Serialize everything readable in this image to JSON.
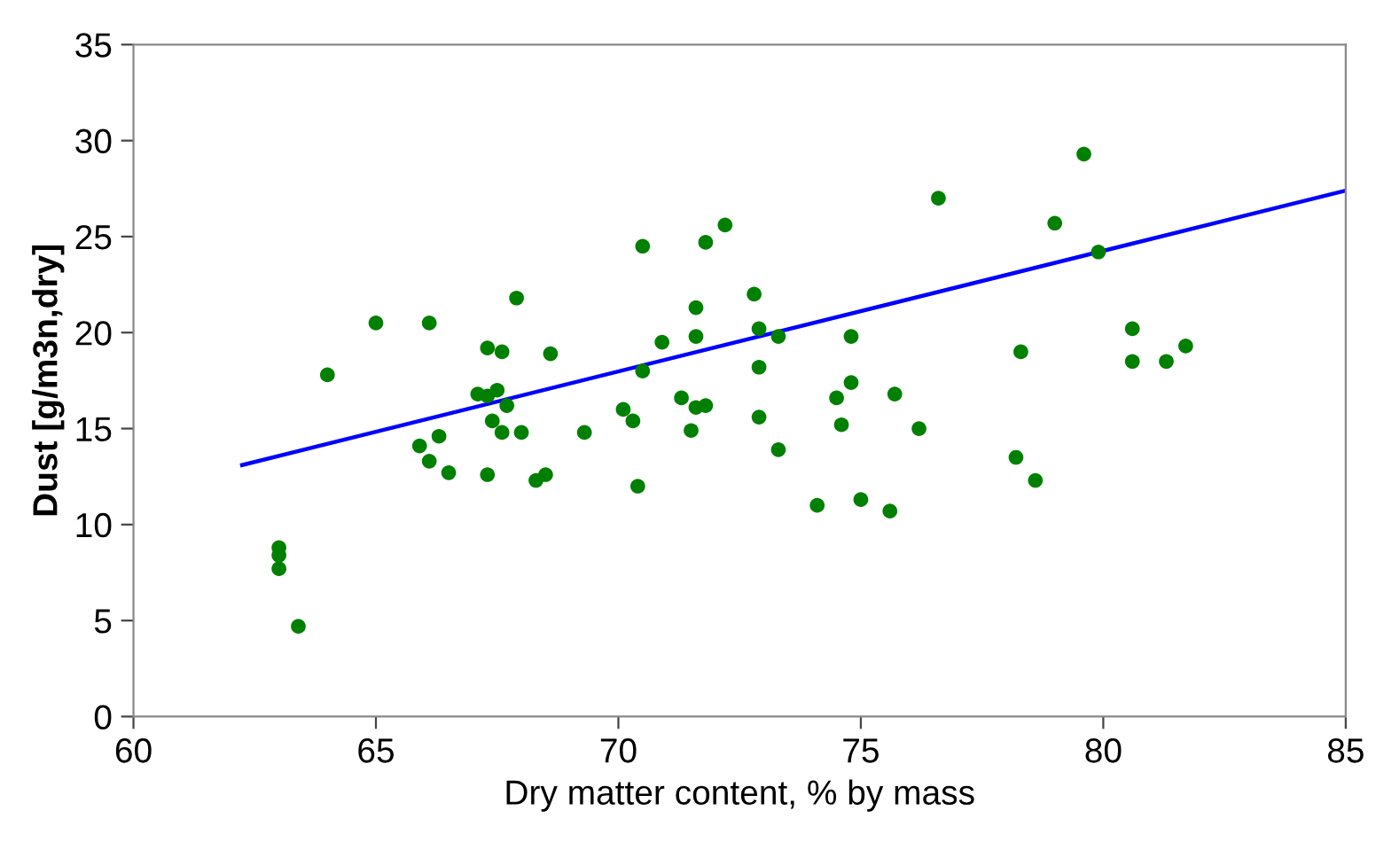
{
  "chart_data": {
    "type": "scatter",
    "xlabel": "Dry matter content, % by mass",
    "ylabel": "Dust [g/m3n,dry]",
    "xlim": [
      60,
      85
    ],
    "xticks": [
      60,
      65,
      70,
      75,
      80,
      85
    ],
    "ylim": [
      0,
      35
    ],
    "yticks": [
      0,
      5,
      10,
      15,
      20,
      25,
      30,
      35
    ],
    "grid": false,
    "series": [
      {
        "marker": "circle",
        "color": "#008000",
        "x": [
          63.0,
          63.0,
          63.0,
          63.4,
          64.0,
          65.0,
          66.1,
          67.9,
          67.3,
          67.6,
          68.6,
          67.1,
          67.3,
          67.5,
          67.7,
          67.4,
          67.6,
          68.0,
          69.3,
          65.9,
          66.3,
          66.1,
          66.5,
          67.3,
          68.3,
          68.5,
          70.5,
          71.8,
          72.2,
          76.6,
          72.8,
          71.6,
          70.9,
          71.6,
          72.9,
          73.3,
          74.8,
          70.5,
          72.9,
          70.1,
          70.3,
          71.3,
          71.6,
          71.8,
          71.5,
          72.9,
          73.3,
          74.8,
          74.5,
          75.7,
          74.6,
          76.2,
          70.4,
          74.1,
          75.0,
          75.6,
          79.6,
          79.0,
          79.9,
          80.6,
          81.7,
          80.6,
          81.3,
          78.3,
          78.2,
          78.6
        ],
        "values": [
          8.8,
          8.4,
          7.7,
          4.7,
          17.8,
          20.5,
          20.5,
          21.8,
          19.2,
          19.0,
          18.9,
          16.8,
          16.7,
          17.0,
          16.2,
          15.4,
          14.8,
          14.8,
          14.8,
          14.1,
          14.6,
          13.3,
          12.7,
          12.6,
          12.3,
          12.6,
          24.5,
          24.7,
          25.6,
          27.0,
          22.0,
          21.3,
          19.5,
          19.8,
          20.2,
          19.8,
          19.8,
          18.0,
          18.2,
          16.0,
          15.4,
          16.6,
          16.1,
          16.2,
          14.9,
          15.6,
          13.9,
          17.4,
          16.6,
          16.8,
          15.2,
          15.0,
          12.0,
          11.0,
          11.3,
          10.7,
          29.3,
          25.7,
          24.2,
          20.2,
          19.3,
          18.5,
          18.5,
          19.0,
          13.5,
          12.3
        ]
      },
      {
        "type": "line",
        "color": "#0000ff",
        "marker": "none",
        "line_style": "solid",
        "x": [
          62.24,
          85
        ],
        "values": [
          13.1,
          27.4
        ]
      }
    ]
  }
}
